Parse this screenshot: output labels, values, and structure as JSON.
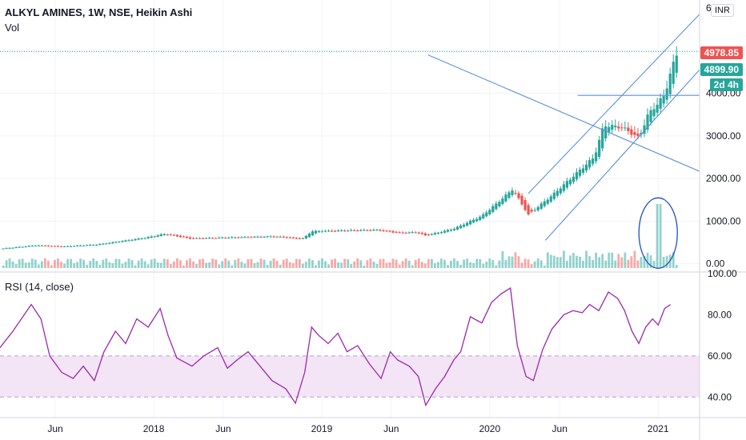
{
  "header": {
    "title": "ALKYL AMINES, 1W, NSE, Heikin Ashi",
    "volume_label": "Vol",
    "rsi_label": "RSI (14, close)"
  },
  "currency_button": "INR",
  "price_tags": {
    "last": "4978.85",
    "close": "4899.90",
    "countdown": "2d 4h",
    "last_color": "#ef5350",
    "close_color": "#26a69a",
    "countdown_color": "#26a69a"
  },
  "colors": {
    "up": "#26a69a",
    "down": "#ef5350",
    "rsi_line": "#9c27b0",
    "rsi_band": "#f3e5f5",
    "trendline": "#5b8fde",
    "annotation": "#1e4fc0"
  },
  "chart_data": [
    {
      "type": "candlestick",
      "style": "Heikin Ashi",
      "interval": "1W",
      "y_axis_ticks": [
        "0.00",
        "1000.00",
        "2000.00",
        "3000.00",
        "4000.00",
        "6000"
      ],
      "ylim": [
        -100,
        6000
      ],
      "x_axis_ticks": [
        "Jun",
        "2018",
        "Jun",
        "2019",
        "Jun",
        "2020",
        "Jun",
        "2021"
      ],
      "x_tick_dates": [
        "2017-06",
        "2018-01",
        "2018-06",
        "2019-01",
        "2019-06",
        "2020-01",
        "2020-06",
        "2021-01"
      ],
      "x_range": [
        "2017-02",
        "2021-04"
      ],
      "anchors": [
        [
          "2017-02-01",
          350
        ],
        [
          "2017-04-20",
          430
        ],
        [
          "2017-06-15",
          400
        ],
        [
          "2017-09-01",
          450
        ],
        [
          "2017-12-15",
          610
        ],
        [
          "2018-01-25",
          700
        ],
        [
          "2018-03-20",
          590
        ],
        [
          "2018-09-20",
          640
        ],
        [
          "2018-11-20",
          580
        ],
        [
          "2018-12-10",
          760
        ],
        [
          "2019-03-01",
          780
        ],
        [
          "2019-05-01",
          790
        ],
        [
          "2019-06-20",
          720
        ],
        [
          "2019-07-25",
          740
        ],
        [
          "2019-08-15",
          660
        ],
        [
          "2019-10-15",
          820
        ],
        [
          "2019-12-15",
          1120
        ],
        [
          "2020-01-20",
          1450
        ],
        [
          "2020-02-20",
          1750
        ],
        [
          "2020-03-25",
          1150
        ],
        [
          "2020-05-15",
          1600
        ],
        [
          "2020-06-20",
          1950
        ],
        [
          "2020-08-15",
          2500
        ],
        [
          "2020-09-05",
          3250
        ],
        [
          "2020-10-15",
          3200
        ],
        [
          "2020-11-20",
          2950
        ],
        [
          "2020-12-10",
          3500
        ],
        [
          "2021-01-15",
          3950
        ],
        [
          "2021-01-28",
          4500
        ],
        [
          "2021-02-10",
          4900
        ]
      ],
      "last_price": 4978.85,
      "close_price": 4899.9
    },
    {
      "type": "bar",
      "name": "Vol",
      "peak_date": "2021-01-01"
    },
    {
      "type": "line",
      "name": "RSI",
      "y_axis_ticks": [
        "40.00",
        "60.00",
        "80.00",
        "100.00"
      ],
      "ylim": [
        30,
        100
      ],
      "band": [
        40,
        60
      ],
      "points": [
        [
          "2017-02-01",
          64
        ],
        [
          "2017-03-01",
          72
        ],
        [
          "2017-04-10",
          85
        ],
        [
          "2017-05-01",
          78
        ],
        [
          "2017-05-20",
          60
        ],
        [
          "2017-06-15",
          52
        ],
        [
          "2017-07-10",
          49
        ],
        [
          "2017-08-01",
          55
        ],
        [
          "2017-08-25",
          48
        ],
        [
          "2017-09-15",
          62
        ],
        [
          "2017-10-10",
          72
        ],
        [
          "2017-11-01",
          66
        ],
        [
          "2017-11-25",
          78
        ],
        [
          "2017-12-20",
          74
        ],
        [
          "2018-01-15",
          83
        ],
        [
          "2018-02-01",
          70
        ],
        [
          "2018-02-20",
          59
        ],
        [
          "2018-03-25",
          55
        ],
        [
          "2018-04-20",
          60
        ],
        [
          "2018-05-20",
          64
        ],
        [
          "2018-06-10",
          54
        ],
        [
          "2018-07-01",
          58
        ],
        [
          "2018-07-25",
          62
        ],
        [
          "2018-08-20",
          55
        ],
        [
          "2018-09-15",
          48
        ],
        [
          "2018-10-15",
          44
        ],
        [
          "2018-11-05",
          37
        ],
        [
          "2018-11-25",
          52
        ],
        [
          "2018-12-10",
          74
        ],
        [
          "2018-12-25",
          70
        ],
        [
          "2019-01-15",
          66
        ],
        [
          "2019-02-05",
          71
        ],
        [
          "2019-02-25",
          62
        ],
        [
          "2019-03-20",
          65
        ],
        [
          "2019-04-15",
          56
        ],
        [
          "2019-05-10",
          49
        ],
        [
          "2019-05-30",
          62
        ],
        [
          "2019-06-15",
          58
        ],
        [
          "2019-07-10",
          55
        ],
        [
          "2019-07-30",
          50
        ],
        [
          "2019-08-15",
          36
        ],
        [
          "2019-09-05",
          44
        ],
        [
          "2019-09-25",
          50
        ],
        [
          "2019-10-15",
          58
        ],
        [
          "2019-10-30",
          62
        ],
        [
          "2019-11-20",
          79
        ],
        [
          "2019-12-15",
          76
        ],
        [
          "2020-01-05",
          86
        ],
        [
          "2020-01-25",
          90
        ],
        [
          "2020-02-15",
          93
        ],
        [
          "2020-03-01",
          65
        ],
        [
          "2020-03-20",
          50
        ],
        [
          "2020-04-05",
          48
        ],
        [
          "2020-04-25",
          63
        ],
        [
          "2020-05-15",
          73
        ],
        [
          "2020-06-10",
          80
        ],
        [
          "2020-06-30",
          82
        ],
        [
          "2020-07-20",
          81
        ],
        [
          "2020-08-05",
          85
        ],
        [
          "2020-08-25",
          82
        ],
        [
          "2020-09-15",
          91
        ],
        [
          "2020-10-05",
          88
        ],
        [
          "2020-10-20",
          82
        ],
        [
          "2020-11-05",
          72
        ],
        [
          "2020-11-20",
          66
        ],
        [
          "2020-12-05",
          74
        ],
        [
          "2020-12-20",
          78
        ],
        [
          "2021-01-01",
          75
        ],
        [
          "2021-01-15",
          83
        ],
        [
          "2021-01-28",
          85
        ]
      ]
    }
  ]
}
